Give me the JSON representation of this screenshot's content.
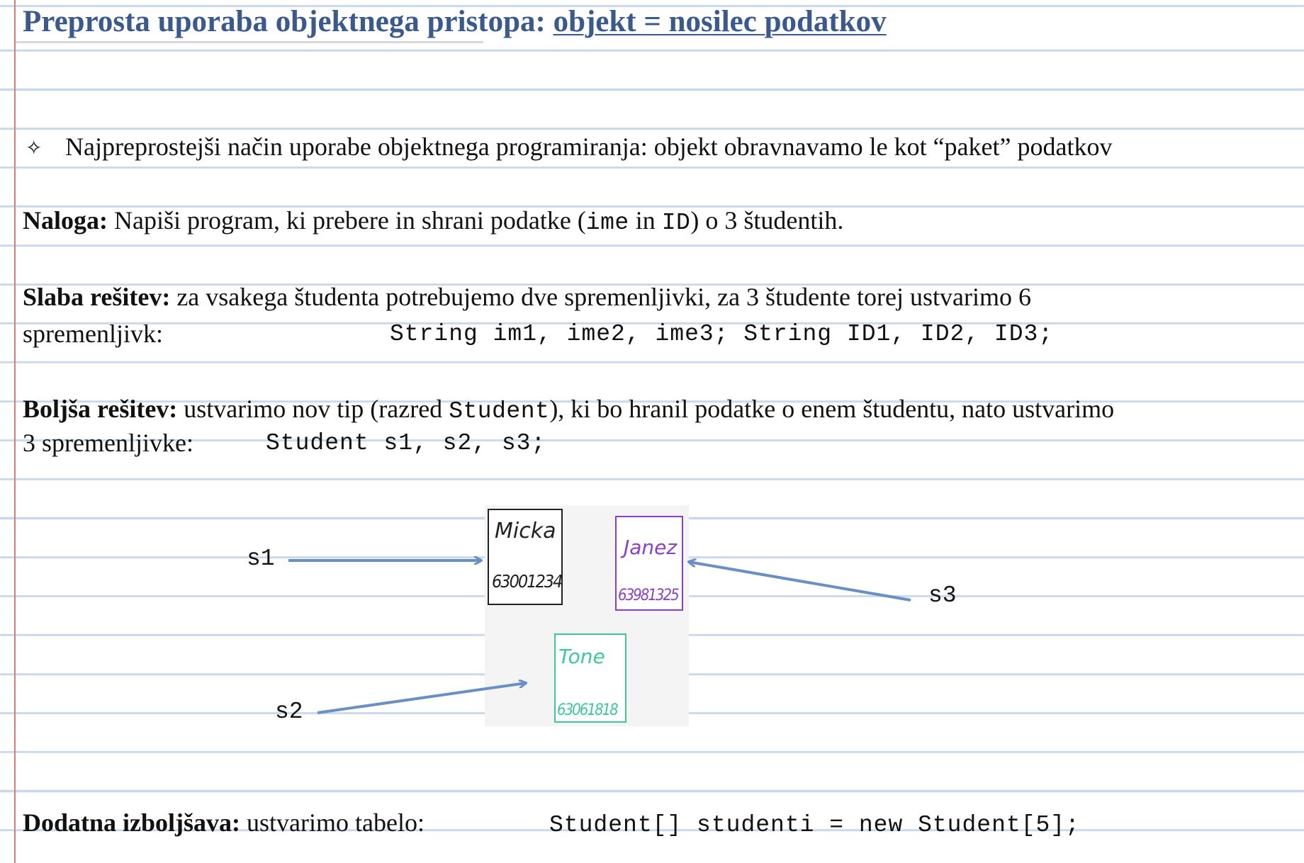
{
  "title": {
    "plain": "Preprosta uporaba objektnega pristopa: ",
    "underlined": "objekt = nosilec podatkov"
  },
  "bullet": {
    "glyph": "✧",
    "text": "Najpreprostejši način uporabe objektnega programiranja: objekt obravnavamo le kot “paket” podatkov"
  },
  "naloga": {
    "label": "Naloga:",
    "t1": " Napiši program, ki prebere in shrani podatke (",
    "c1": "ime",
    "t2": " in ",
    "c2": "ID",
    "t3": ") o 3 študentih."
  },
  "slaba": {
    "label": "Slaba rešitev:",
    "text": "  za vsakega študenta potrebujemo dve spremenljivki, za 3 študente torej ustvarimo 6",
    "text2": "spremenljivk:",
    "code": "String im1, ime2, ime3; String ID1, ID2, ID3;"
  },
  "boljsa": {
    "label": "Boljša rešitev:",
    "t1": " ustvarimo nov tip (razred ",
    "c1": "Student",
    "t2": "), ki bo hranil podatke o enem študentu, nato ustvarimo",
    "text2": "3 spremenljivke:",
    "code": "Student s1, s2, s3;"
  },
  "diagram": {
    "cards": [
      {
        "name": "Micka",
        "id": "63001234",
        "color": "#222222"
      },
      {
        "name": "Janez",
        "id": "63981325",
        "color": "#8a3fd1"
      },
      {
        "name": "Tone",
        "id": "63061818",
        "color": "#3cc99a"
      }
    ],
    "vars": [
      "s1",
      "s2",
      "s3"
    ],
    "arrow_color": "#6a8fc2"
  },
  "dodatna": {
    "label": "Dodatna izboljšava:",
    "text": "  ustvarimo tabelo:",
    "code": "Student[] studenti = new Student[5];"
  }
}
